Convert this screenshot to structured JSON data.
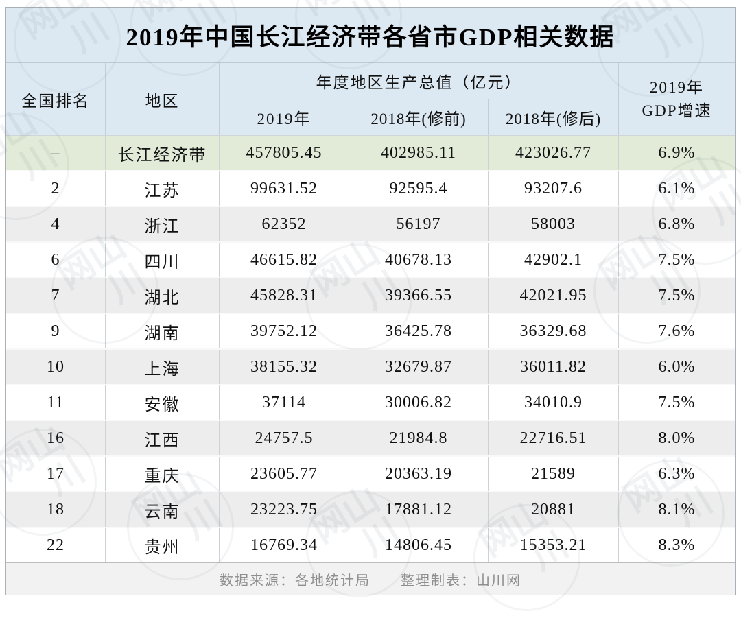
{
  "page": {
    "title": "2019年中国长江经济带各省市GDP相关数据"
  },
  "header": {
    "rank": "全国排名",
    "region": "地区",
    "group": "年度地区生产总值（亿元）",
    "y2019": "2019年",
    "y2018_pre": "2018年(修前)",
    "y2018_post": "2018年(修后)",
    "growth_line1": "2019年",
    "growth_line2": "GDP增速"
  },
  "chart_data": {
    "type": "table",
    "title": "2019年中国长江经济带各省市GDP相关数据",
    "column_group_label": "年度地区生产总值（亿元）",
    "columns": [
      "全国排名",
      "地区",
      "2019年",
      "2018年(修前)",
      "2018年(修后)",
      "2019年GDP增速"
    ],
    "rows": [
      {
        "rank": "–",
        "region": "长江经济带",
        "gdp2019": "457805.45",
        "gdp2018_pre": "402985.11",
        "gdp2018_post": "423026.77",
        "growth": "6.9%",
        "highlight": true
      },
      {
        "rank": "2",
        "region": "江苏",
        "gdp2019": "99631.52",
        "gdp2018_pre": "92595.4",
        "gdp2018_post": "93207.6",
        "growth": "6.1%",
        "highlight": false
      },
      {
        "rank": "4",
        "region": "浙江",
        "gdp2019": "62352",
        "gdp2018_pre": "56197",
        "gdp2018_post": "58003",
        "growth": "6.8%",
        "highlight": false
      },
      {
        "rank": "6",
        "region": "四川",
        "gdp2019": "46615.82",
        "gdp2018_pre": "40678.13",
        "gdp2018_post": "42902.1",
        "growth": "7.5%",
        "highlight": false
      },
      {
        "rank": "7",
        "region": "湖北",
        "gdp2019": "45828.31",
        "gdp2018_pre": "39366.55",
        "gdp2018_post": "42021.95",
        "growth": "7.5%",
        "highlight": false
      },
      {
        "rank": "9",
        "region": "湖南",
        "gdp2019": "39752.12",
        "gdp2018_pre": "36425.78",
        "gdp2018_post": "36329.68",
        "growth": "7.6%",
        "highlight": false
      },
      {
        "rank": "10",
        "region": "上海",
        "gdp2019": "38155.32",
        "gdp2018_pre": "32679.87",
        "gdp2018_post": "36011.82",
        "growth": "6.0%",
        "highlight": false
      },
      {
        "rank": "11",
        "region": "安徽",
        "gdp2019": "37114",
        "gdp2018_pre": "30006.82",
        "gdp2018_post": "34010.9",
        "growth": "7.5%",
        "highlight": false
      },
      {
        "rank": "16",
        "region": "江西",
        "gdp2019": "24757.5",
        "gdp2018_pre": "21984.8",
        "gdp2018_post": "22716.51",
        "growth": "8.0%",
        "highlight": false
      },
      {
        "rank": "17",
        "region": "重庆",
        "gdp2019": "23605.77",
        "gdp2018_pre": "20363.19",
        "gdp2018_post": "21589",
        "growth": "6.3%",
        "highlight": false
      },
      {
        "rank": "18",
        "region": "云南",
        "gdp2019": "23223.75",
        "gdp2018_pre": "17881.12",
        "gdp2018_post": "20881",
        "growth": "8.1%",
        "highlight": false
      },
      {
        "rank": "22",
        "region": "贵州",
        "gdp2019": "16769.34",
        "gdp2018_pre": "14806.45",
        "gdp2018_post": "15353.21",
        "growth": "8.3%",
        "highlight": false
      }
    ]
  },
  "footer": {
    "text": "数据来源：各地统计局　　整理制表：山川网"
  },
  "watermark": {
    "text": "山川网"
  },
  "colors": {
    "header_fill": "#dce8f2",
    "highlight_row_fill": "#e1ebd7",
    "alt_row_fill": "#ededed",
    "footer_fill": "#f2f2f2",
    "grid_line": "#cdd2d6",
    "footer_text": "#8e8e8e"
  }
}
